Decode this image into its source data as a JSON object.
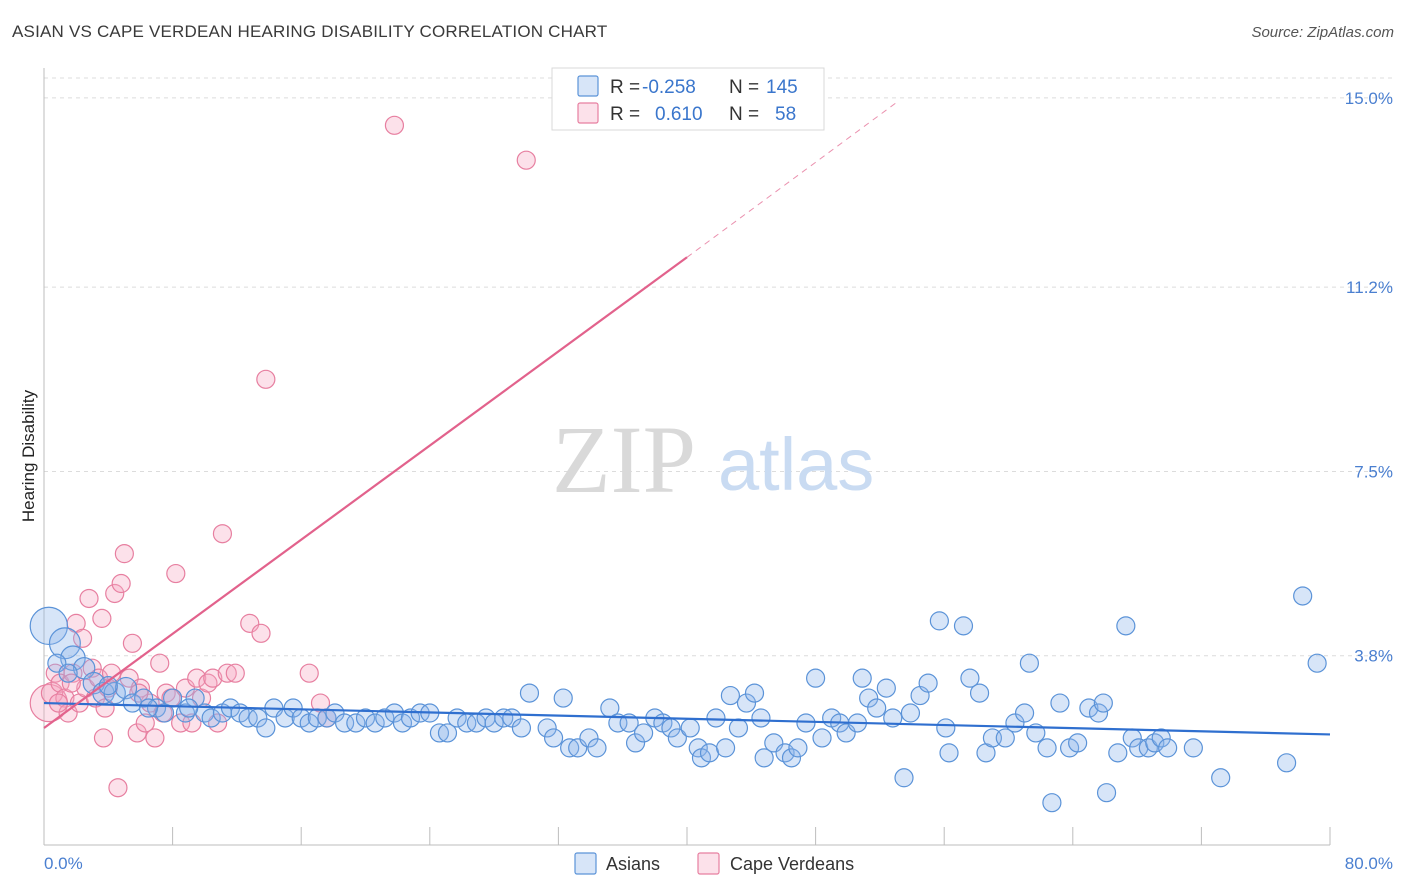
{
  "header": {
    "title": "ASIAN VS CAPE VERDEAN HEARING DISABILITY CORRELATION CHART",
    "source": "Source: ZipAtlas.com"
  },
  "watermark": {
    "zip": "ZIP",
    "atlas": "atlas"
  },
  "colors": {
    "asian": "#5b93d8",
    "asian_fill": "rgba(140,180,235,0.35)",
    "cape": "#e77fa0",
    "cape_fill": "rgba(245,170,195,0.35)",
    "asian_line": "#2f6fcf",
    "cape_line": "#e2628c",
    "tick_text": "#4a7fd0"
  },
  "legend_top": {
    "rows": [
      {
        "r_label": "R =",
        "r_value": "-0.258",
        "n_label": "N =",
        "n_value": "145",
        "series": "asian"
      },
      {
        "r_label": "R =",
        "r_value": "0.610",
        "n_label": "N =",
        "n_value": "58",
        "series": "cape"
      }
    ]
  },
  "legend_bottom": {
    "asian": "Asians",
    "cape": "Cape Verdeans"
  },
  "chart_data": {
    "type": "scatter",
    "title": "ASIAN VS CAPE VERDEAN HEARING DISABILITY CORRELATION CHART",
    "xlabel": "",
    "ylabel": "Hearing Disability",
    "xlim": [
      0,
      80
    ],
    "ylim": [
      0,
      15.4
    ],
    "x_tick_labels": [
      "0.0%",
      "80.0%"
    ],
    "y_ticks": [
      3.8,
      7.5,
      11.2,
      15.0
    ],
    "y_tick_labels": [
      "3.8%",
      "7.5%",
      "11.2%",
      "15.0%"
    ],
    "grid": true,
    "legend_position": "top-center",
    "series": [
      {
        "name": "Asians",
        "r": -0.258,
        "n": 145,
        "trend": {
          "x0": 0,
          "y0": 2.85,
          "x1": 80,
          "y1": 2.22
        },
        "points": [
          [
            0.3,
            4.4,
            1
          ],
          [
            1.3,
            4.05,
            0.8
          ],
          [
            1.8,
            3.75,
            0.6
          ],
          [
            2.5,
            3.55,
            0.5
          ],
          [
            3.1,
            3.25,
            0.5
          ],
          [
            3.7,
            3.05,
            0.5
          ],
          [
            4.4,
            3.05,
            0.5
          ],
          [
            5.1,
            3.15,
            0.5
          ],
          [
            5.5,
            2.85,
            0.4
          ],
          [
            6.2,
            2.95,
            0.4
          ],
          [
            7.0,
            2.75,
            0.4
          ],
          [
            7.5,
            2.65,
            0.4
          ],
          [
            8.0,
            2.95,
            0.4
          ],
          [
            8.8,
            2.65,
            0.4
          ],
          [
            9.4,
            2.95,
            0.4
          ],
          [
            10.0,
            2.65,
            0.4
          ],
          [
            10.4,
            2.55,
            0.4
          ],
          [
            11.1,
            2.65,
            0.4
          ],
          [
            11.6,
            2.75,
            0.4
          ],
          [
            12.2,
            2.65,
            0.4
          ],
          [
            12.7,
            2.55,
            0.4
          ],
          [
            13.3,
            2.55,
            0.4
          ],
          [
            13.8,
            2.35,
            0.4
          ],
          [
            14.3,
            2.75,
            0.4
          ],
          [
            15.0,
            2.55,
            0.4
          ],
          [
            15.5,
            2.75,
            0.4
          ],
          [
            16.0,
            2.55,
            0.4
          ],
          [
            16.5,
            2.45,
            0.4
          ],
          [
            17.0,
            2.55,
            0.4
          ],
          [
            17.6,
            2.55,
            0.4
          ],
          [
            18.1,
            2.65,
            0.4
          ],
          [
            18.7,
            2.45,
            0.4
          ],
          [
            19.4,
            2.45,
            0.4
          ],
          [
            20.0,
            2.55,
            0.4
          ],
          [
            20.6,
            2.45,
            0.4
          ],
          [
            21.2,
            2.55,
            0.4
          ],
          [
            21.8,
            2.65,
            0.4
          ],
          [
            22.3,
            2.45,
            0.4
          ],
          [
            22.8,
            2.55,
            0.4
          ],
          [
            23.4,
            2.65,
            0.4
          ],
          [
            24.0,
            2.65,
            0.4
          ],
          [
            24.6,
            2.25,
            0.4
          ],
          [
            25.1,
            2.25,
            0.4
          ],
          [
            25.7,
            2.55,
            0.4
          ],
          [
            26.3,
            2.45,
            0.4
          ],
          [
            26.9,
            2.45,
            0.4
          ],
          [
            27.5,
            2.55,
            0.4
          ],
          [
            28.0,
            2.45,
            0.4
          ],
          [
            28.6,
            2.55,
            0.4
          ],
          [
            29.1,
            2.55,
            0.4
          ],
          [
            29.7,
            2.35,
            0.4
          ],
          [
            30.2,
            3.05,
            0.4
          ],
          [
            31.3,
            2.35,
            0.4
          ],
          [
            31.7,
            2.15,
            0.4
          ],
          [
            32.3,
            2.95,
            0.4
          ],
          [
            32.7,
            1.95,
            0.4
          ],
          [
            33.2,
            1.95,
            0.4
          ],
          [
            33.9,
            2.15,
            0.4
          ],
          [
            34.4,
            1.95,
            0.4
          ],
          [
            35.2,
            2.75,
            0.4
          ],
          [
            35.7,
            2.45,
            0.4
          ],
          [
            36.4,
            2.45,
            0.4
          ],
          [
            36.8,
            2.05,
            0.4
          ],
          [
            37.3,
            2.25,
            0.4
          ],
          [
            38.0,
            2.55,
            0.4
          ],
          [
            38.5,
            2.45,
            0.4
          ],
          [
            39.0,
            2.35,
            0.4
          ],
          [
            39.4,
            2.15,
            0.4
          ],
          [
            40.2,
            2.35,
            0.4
          ],
          [
            40.7,
            1.95,
            0.4
          ],
          [
            40.9,
            1.75,
            0.4
          ],
          [
            41.4,
            1.85,
            0.4
          ],
          [
            41.8,
            2.55,
            0.4
          ],
          [
            42.4,
            1.95,
            0.4
          ],
          [
            42.7,
            3.0,
            0.4
          ],
          [
            43.2,
            2.35,
            0.4
          ],
          [
            43.7,
            2.85,
            0.4
          ],
          [
            44.2,
            3.05,
            0.4
          ],
          [
            44.6,
            2.55,
            0.4
          ],
          [
            44.8,
            1.75,
            0.4
          ],
          [
            45.4,
            2.05,
            0.4
          ],
          [
            46.1,
            1.85,
            0.4
          ],
          [
            46.5,
            1.75,
            0.4
          ],
          [
            46.9,
            1.95,
            0.4
          ],
          [
            47.4,
            2.45,
            0.4
          ],
          [
            48.0,
            3.35,
            0.4
          ],
          [
            48.4,
            2.15,
            0.4
          ],
          [
            49.0,
            2.55,
            0.4
          ],
          [
            49.5,
            2.45,
            0.4
          ],
          [
            49.9,
            2.25,
            0.4
          ],
          [
            50.6,
            2.45,
            0.4
          ],
          [
            50.9,
            3.35,
            0.4
          ],
          [
            51.3,
            2.95,
            0.4
          ],
          [
            51.8,
            2.75,
            0.4
          ],
          [
            52.4,
            3.15,
            0.4
          ],
          [
            52.8,
            2.55,
            0.4
          ],
          [
            53.5,
            1.35,
            0.4
          ],
          [
            53.9,
            2.65,
            0.4
          ],
          [
            54.5,
            3.0,
            0.4
          ],
          [
            55.0,
            3.25,
            0.4
          ],
          [
            55.7,
            4.5,
            0.4
          ],
          [
            56.1,
            2.35,
            0.4
          ],
          [
            56.3,
            1.85,
            0.4
          ],
          [
            57.2,
            4.4,
            0.4
          ],
          [
            57.6,
            3.35,
            0.4
          ],
          [
            58.2,
            3.05,
            0.4
          ],
          [
            58.6,
            1.85,
            0.4
          ],
          [
            59.0,
            2.15,
            0.4
          ],
          [
            59.8,
            2.15,
            0.4
          ],
          [
            60.4,
            2.45,
            0.4
          ],
          [
            61.0,
            2.65,
            0.4
          ],
          [
            61.3,
            3.65,
            0.4
          ],
          [
            61.7,
            2.25,
            0.4
          ],
          [
            62.4,
            1.95,
            0.4
          ],
          [
            62.7,
            0.85,
            0.4
          ],
          [
            63.2,
            2.85,
            0.4
          ],
          [
            63.8,
            1.95,
            0.4
          ],
          [
            64.3,
            2.05,
            0.4
          ],
          [
            65.0,
            2.75,
            0.4
          ],
          [
            65.6,
            2.65,
            0.4
          ],
          [
            65.9,
            2.85,
            0.4
          ],
          [
            66.1,
            1.05,
            0.4
          ],
          [
            66.8,
            1.85,
            0.4
          ],
          [
            67.3,
            4.4,
            0.4
          ],
          [
            67.7,
            2.15,
            0.4
          ],
          [
            68.1,
            1.95,
            0.4
          ],
          [
            68.7,
            1.95,
            0.4
          ],
          [
            69.1,
            2.05,
            0.4
          ],
          [
            69.5,
            2.15,
            0.4
          ],
          [
            69.9,
            1.95,
            0.4
          ],
          [
            71.5,
            1.95,
            0.4
          ],
          [
            73.2,
            1.35,
            0.4
          ],
          [
            77.3,
            1.65,
            0.4
          ],
          [
            78.3,
            5.0,
            0.4
          ],
          [
            79.2,
            3.65,
            0.4
          ],
          [
            0.8,
            3.65,
            0.4
          ],
          [
            1.5,
            3.45,
            0.4
          ],
          [
            4.0,
            3.2,
            0.4
          ],
          [
            6.5,
            2.75,
            0.4
          ],
          [
            9.0,
            2.75,
            0.4
          ]
        ]
      },
      {
        "name": "Cape Verdeans",
        "r": 0.61,
        "n": 58,
        "trend": {
          "x0": 0,
          "y0": 2.35,
          "x1": 40,
          "y1": 11.8
        },
        "trend_extension": {
          "x0": 40,
          "y0": 11.8,
          "x1": 53,
          "y1": 14.9
        },
        "points": [
          [
            0.3,
            2.85,
            1
          ],
          [
            0.5,
            3.05,
            0.5
          ],
          [
            0.7,
            3.45,
            0.4
          ],
          [
            1.0,
            3.25,
            0.4
          ],
          [
            1.3,
            2.95,
            0.4
          ],
          [
            1.5,
            2.65,
            0.4
          ],
          [
            1.8,
            3.45,
            0.4
          ],
          [
            2.0,
            4.45,
            0.4
          ],
          [
            2.2,
            2.85,
            0.4
          ],
          [
            2.4,
            4.15,
            0.4
          ],
          [
            2.6,
            3.15,
            0.4
          ],
          [
            2.8,
            4.95,
            0.4
          ],
          [
            3.0,
            3.55,
            0.4
          ],
          [
            3.2,
            2.95,
            0.4
          ],
          [
            3.4,
            3.35,
            0.4
          ],
          [
            3.6,
            4.55,
            0.4
          ],
          [
            3.8,
            2.75,
            0.4
          ],
          [
            4.0,
            3.15,
            0.4
          ],
          [
            4.2,
            3.45,
            0.4
          ],
          [
            4.4,
            5.05,
            0.4
          ],
          [
            4.6,
            1.15,
            0.4
          ],
          [
            4.8,
            5.25,
            0.4
          ],
          [
            5.0,
            5.85,
            0.4
          ],
          [
            5.3,
            3.35,
            0.4
          ],
          [
            5.5,
            4.05,
            0.4
          ],
          [
            5.8,
            2.25,
            0.4
          ],
          [
            6.0,
            3.15,
            0.4
          ],
          [
            6.3,
            2.45,
            0.4
          ],
          [
            6.6,
            2.85,
            0.4
          ],
          [
            6.9,
            2.15,
            0.4
          ],
          [
            7.2,
            3.65,
            0.4
          ],
          [
            7.6,
            3.05,
            0.4
          ],
          [
            7.9,
            2.95,
            0.4
          ],
          [
            8.2,
            5.45,
            0.4
          ],
          [
            8.5,
            2.45,
            0.4
          ],
          [
            8.8,
            3.15,
            0.4
          ],
          [
            9.2,
            2.45,
            0.4
          ],
          [
            9.5,
            3.35,
            0.4
          ],
          [
            9.8,
            2.95,
            0.4
          ],
          [
            10.2,
            3.25,
            0.4
          ],
          [
            10.5,
            3.35,
            0.4
          ],
          [
            10.8,
            2.45,
            0.4
          ],
          [
            11.1,
            6.25,
            0.4
          ],
          [
            11.4,
            3.45,
            0.4
          ],
          [
            11.9,
            3.45,
            0.4
          ],
          [
            12.8,
            4.45,
            0.4
          ],
          [
            13.5,
            4.25,
            0.4
          ],
          [
            13.8,
            9.35,
            0.4
          ],
          [
            16.5,
            3.45,
            0.4
          ],
          [
            17.2,
            2.85,
            0.4
          ],
          [
            17.6,
            2.55,
            0.4
          ],
          [
            21.8,
            14.45,
            0.4
          ],
          [
            30.0,
            13.75,
            0.4
          ],
          [
            0.9,
            2.85,
            0.4
          ],
          [
            1.7,
            3.25,
            0.4
          ],
          [
            3.7,
            2.15,
            0.4
          ],
          [
            5.9,
            3.05,
            0.4
          ],
          [
            7.4,
            2.65,
            0.4
          ]
        ]
      }
    ]
  }
}
